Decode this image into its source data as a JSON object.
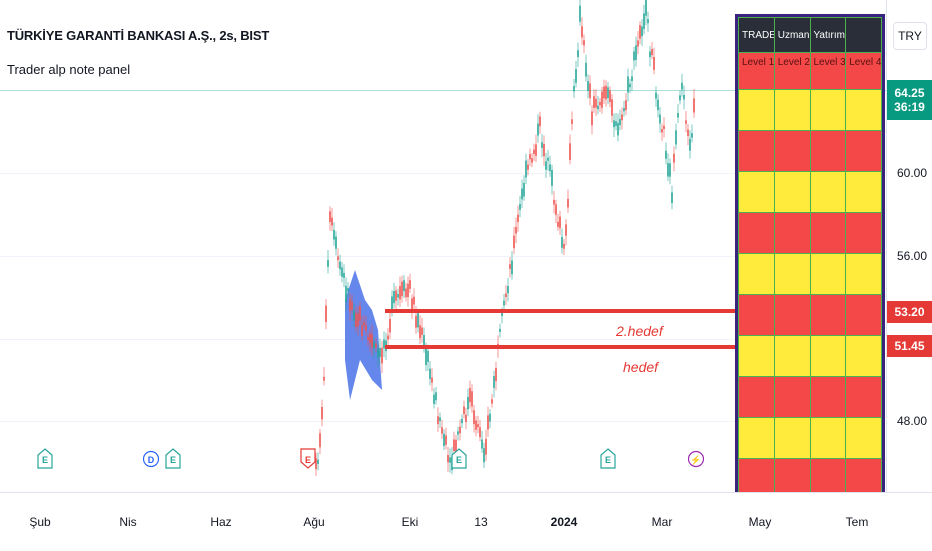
{
  "symbol": {
    "title": "TÜRKİYE GARANTİ BANKASI A.Ş., 2s, BIST",
    "indicator": "Trader alp note panel"
  },
  "currency": "TRY",
  "price_axis": {
    "ticks": [
      "60.00",
      "56.00",
      "48.00"
    ]
  },
  "price_tags": {
    "current_price": "64.25",
    "countdown": "36:19",
    "target2_price": "53.20",
    "target1_price": "51.45"
  },
  "time_axis": {
    "labels": [
      "Şub",
      "Nis",
      "Haz",
      "Ağu",
      "Eki",
      "13",
      "2024",
      "Mar",
      "May",
      "Tem"
    ]
  },
  "targets": {
    "label2": "2.hedef",
    "label1": "hedef"
  },
  "panel": {
    "headers": [
      "TRADER ALP",
      "Uzman",
      "Yatırım",
      ""
    ],
    "levels": [
      "Level 1",
      "Level 2",
      "Level 3",
      "Level 4"
    ]
  },
  "events": [
    {
      "letter": "E",
      "type": "earnings"
    },
    {
      "letter": "D",
      "type": "dividend"
    },
    {
      "letter": "E",
      "type": "earnings"
    },
    {
      "letter": "E",
      "type": "earnings-negative"
    },
    {
      "letter": "E",
      "type": "earnings"
    },
    {
      "letter": "E",
      "type": "earnings"
    },
    {
      "letter": "⚡",
      "type": "split"
    }
  ],
  "colors": {
    "up": "#26a69a",
    "down": "#ef5350",
    "accent": "#3a237d",
    "yellow": "#ffeb3b",
    "red": "#f44848",
    "price_tag": "#089981",
    "target_tag": "#e53935"
  }
}
